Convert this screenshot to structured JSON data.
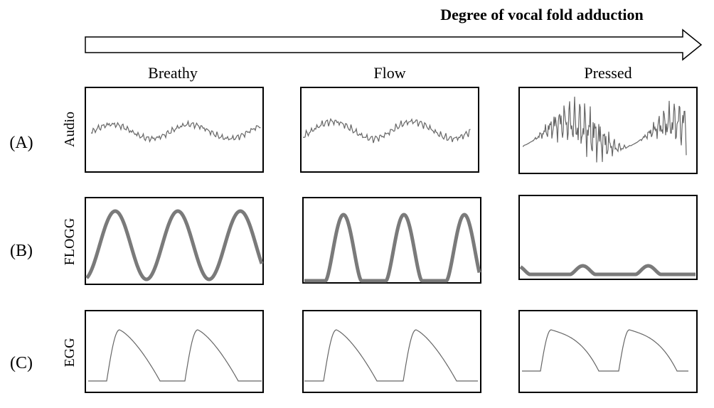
{
  "arrow": {
    "label": "Degree of vocal fold adduction"
  },
  "columns": [
    "Breathy",
    "Flow",
    "Pressed"
  ],
  "rows": [
    {
      "label": "(A)",
      "signal": "Audio"
    },
    {
      "label": "(B)",
      "signal": "FLOGG"
    },
    {
      "label": "(C)",
      "signal": "EGG"
    }
  ]
}
